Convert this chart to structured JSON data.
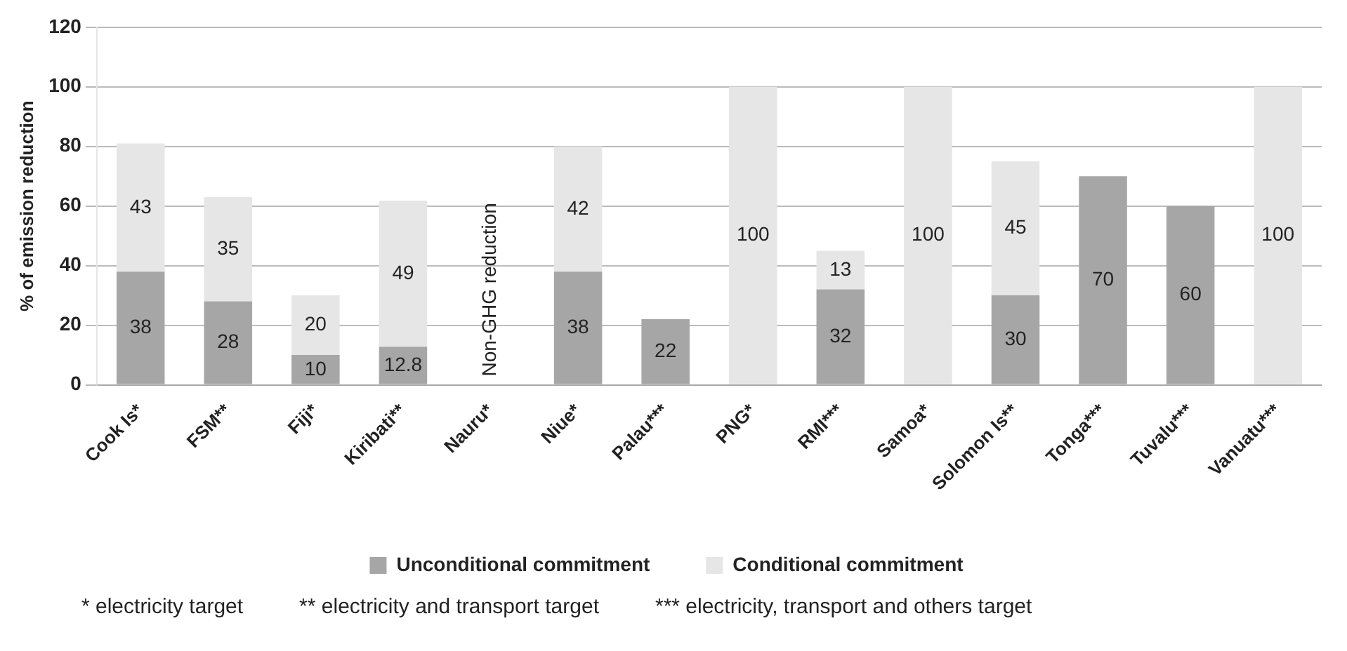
{
  "chart_data": {
    "type": "bar",
    "stacked": true,
    "ylabel": "% of emission reduction",
    "categories": [
      "Cook Is*",
      "FSM**",
      "Fiji*",
      "Kiribati**",
      "Nauru*",
      "Niue*",
      "Palau***",
      "PNG*",
      "RMI***",
      "Samoa*",
      "Solomon Is**",
      "Tonga***",
      "Tuvalu***",
      "Vanuatu***"
    ],
    "series": [
      {
        "name": "Unconditional commitment",
        "color": "#a6a6a6",
        "values": [
          38,
          28,
          10,
          12.8,
          null,
          38,
          22,
          null,
          32,
          null,
          30,
          70,
          60,
          null
        ]
      },
      {
        "name": "Conditional commitment",
        "color": "#e6e6e6",
        "values": [
          43,
          35,
          20,
          49,
          null,
          42,
          null,
          100,
          13,
          100,
          45,
          null,
          null,
          100
        ]
      }
    ],
    "ylim": [
      0,
      120
    ],
    "yticks": [
      0,
      20,
      40,
      60,
      80,
      100,
      120
    ],
    "grid": "y",
    "legend": "bottom",
    "data_labels": true,
    "annotations": [
      "Non-GHG reduction",
      "* electricity target",
      "** electricity and transport target",
      "*** electricity, transport and others target"
    ]
  }
}
